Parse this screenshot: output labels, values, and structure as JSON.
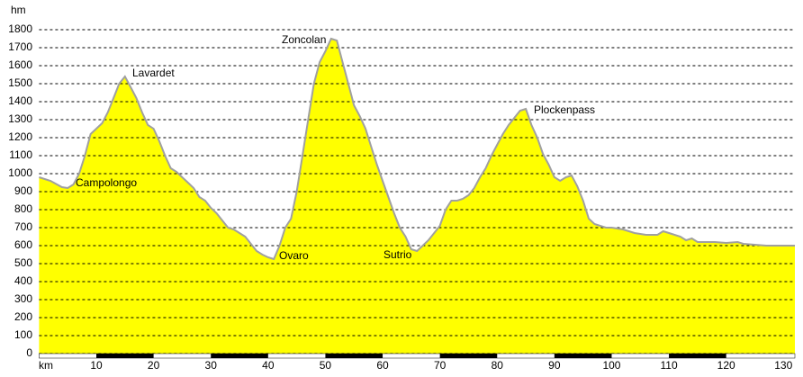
{
  "chart_data": {
    "type": "area",
    "y_label": "hm",
    "x_label": "km",
    "x": [
      0,
      2,
      4,
      5,
      6,
      7,
      8,
      9,
      10,
      11,
      12,
      13,
      14,
      15,
      16,
      17,
      18,
      19,
      20,
      21,
      22,
      23,
      24,
      25,
      26,
      27,
      28,
      29,
      30,
      31,
      32,
      33,
      34,
      35,
      36,
      37,
      38,
      39,
      40,
      41,
      42,
      43,
      44,
      45,
      46,
      47,
      48,
      49,
      50,
      51,
      52,
      53,
      54,
      55,
      56,
      57,
      58,
      59,
      60,
      61,
      62,
      63,
      64,
      65,
      66,
      67,
      68,
      69,
      70,
      71,
      72,
      73,
      74,
      75,
      76,
      77,
      78,
      79,
      80,
      81,
      82,
      83,
      84,
      85,
      86,
      87,
      88,
      89,
      90,
      91,
      92,
      93,
      94,
      95,
      96,
      97,
      98,
      99,
      100,
      102,
      104,
      106,
      108,
      109,
      110,
      112,
      113,
      114,
      115,
      116,
      118,
      120,
      122,
      123,
      125,
      127,
      130,
      132
    ],
    "values": [
      980,
      960,
      925,
      920,
      940,
      1000,
      1100,
      1220,
      1250,
      1280,
      1340,
      1420,
      1500,
      1540,
      1480,
      1420,
      1340,
      1270,
      1250,
      1180,
      1100,
      1030,
      1010,
      980,
      950,
      920,
      870,
      850,
      810,
      780,
      740,
      700,
      690,
      670,
      650,
      610,
      570,
      550,
      535,
      525,
      600,
      700,
      750,
      900,
      1100,
      1300,
      1500,
      1620,
      1680,
      1750,
      1740,
      1620,
      1500,
      1380,
      1320,
      1250,
      1150,
      1050,
      960,
      870,
      780,
      700,
      650,
      580,
      570,
      600,
      630,
      670,
      710,
      800,
      850,
      850,
      860,
      880,
      920,
      980,
      1030,
      1100,
      1160,
      1220,
      1270,
      1310,
      1350,
      1360,
      1270,
      1200,
      1110,
      1050,
      980,
      960,
      980,
      990,
      930,
      850,
      750,
      720,
      710,
      700,
      700,
      690,
      670,
      660,
      660,
      680,
      670,
      650,
      630,
      640,
      620,
      620,
      620,
      615,
      620,
      610,
      605,
      600,
      600,
      600
    ],
    "fill": "#ffff00",
    "line_color": "#a0a0a0",
    "xlim": [
      0,
      132
    ],
    "ylim": [
      0,
      1800
    ],
    "xticks": [
      10,
      20,
      30,
      40,
      50,
      60,
      70,
      80,
      90,
      100,
      110,
      120,
      130
    ],
    "yticks": [
      0,
      100,
      200,
      300,
      400,
      500,
      600,
      700,
      800,
      900,
      1000,
      1100,
      1200,
      1300,
      1400,
      1500,
      1600,
      1700,
      1800
    ],
    "grid": true,
    "annotations": [
      "Campolongo",
      "Lavardet",
      "Zoncolan",
      "Ovaro",
      "Sutrio",
      "Plockenpass"
    ]
  }
}
